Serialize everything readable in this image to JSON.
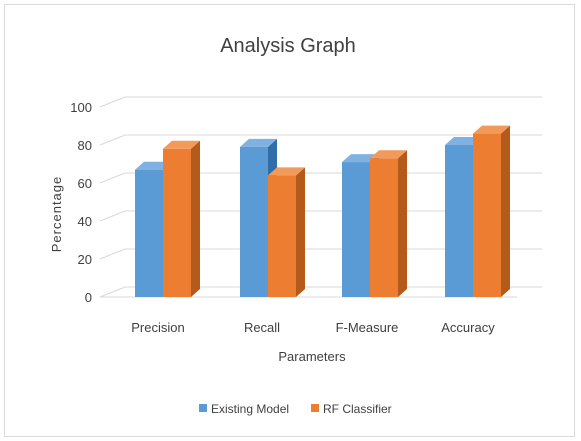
{
  "chart_data": {
    "type": "bar",
    "title": "Analysis Graph",
    "xlabel": "Parameters",
    "ylabel": "Percentage",
    "categories": [
      "Precision",
      "Recall",
      "F-Measure",
      "Accuracy"
    ],
    "series": [
      {
        "name": "Existing Model",
        "values": [
          67,
          79,
          71,
          80
        ]
      },
      {
        "name": "RF Classifier",
        "values": [
          78,
          64,
          73,
          86
        ]
      }
    ],
    "yticks": [
      "0",
      "20",
      "40",
      "60",
      "80",
      "100"
    ],
    "ylim": [
      0,
      100
    ],
    "grid": true,
    "legend_position": "bottom",
    "style": "3d-column",
    "colors": {
      "series": [
        "#5b9bd5",
        "#ed7d31"
      ],
      "series_top": [
        "#7fb2e3",
        "#f29a5a"
      ],
      "series_side": [
        "#2f6ea8",
        "#b45a1a"
      ],
      "grid": "#d9d9d9",
      "text": "#404040"
    }
  }
}
